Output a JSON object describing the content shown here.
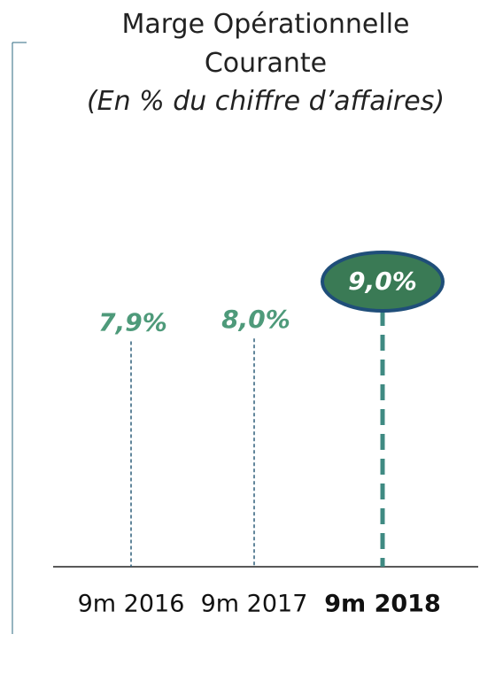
{
  "chart_data": {
    "type": "lollipop",
    "title": "Marge Opérationnelle Courante",
    "subtitle": "(En % du chiffre d’affaires)",
    "categories": [
      "9m 2016",
      "9m 2017",
      "9m 2018"
    ],
    "values": [
      7.9,
      8.0,
      9.0
    ],
    "value_labels": [
      "7,9%",
      "8,0%",
      "9,0%"
    ],
    "color": "#4e9a7a"
  }
}
